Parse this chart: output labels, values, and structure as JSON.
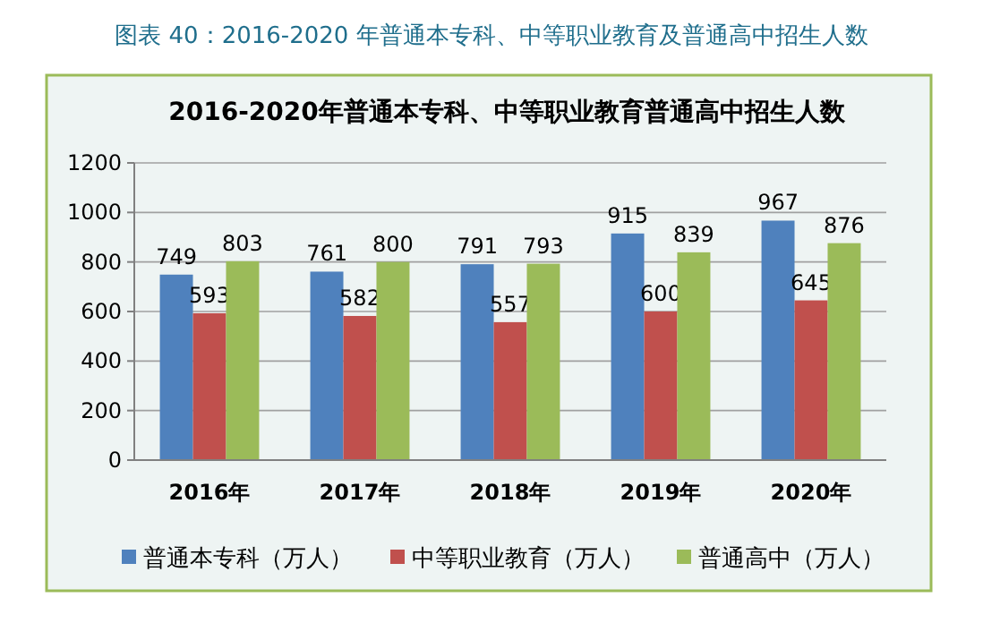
{
  "chart_data": {
    "type": "bar",
    "title": "图表 40：2016-2020 年普通本专科、中等职业教育及普通高中招生人数",
    "subtitle": "2016-2020年普通本专科、中等职业教育普通高中招生人数",
    "categories": [
      "2016年",
      "2017年",
      "2018年",
      "2019年",
      "2020年"
    ],
    "series": [
      {
        "name": "普通本专科（万人）",
        "color": "#4f81bd",
        "values": [
          749,
          761,
          791,
          915,
          967
        ]
      },
      {
        "name": "中等职业教育（万人）",
        "color": "#c0504d",
        "values": [
          593,
          582,
          557,
          600,
          645
        ]
      },
      {
        "name": "普通高中（万人）",
        "color": "#9bbb59",
        "values": [
          803,
          800,
          793,
          839,
          876
        ]
      }
    ],
    "ylim": [
      0,
      1200
    ],
    "yticks": [
      0,
      200,
      400,
      600,
      800,
      1000,
      1200
    ],
    "grid": "y",
    "legend": "bottom",
    "data_labels": true
  }
}
